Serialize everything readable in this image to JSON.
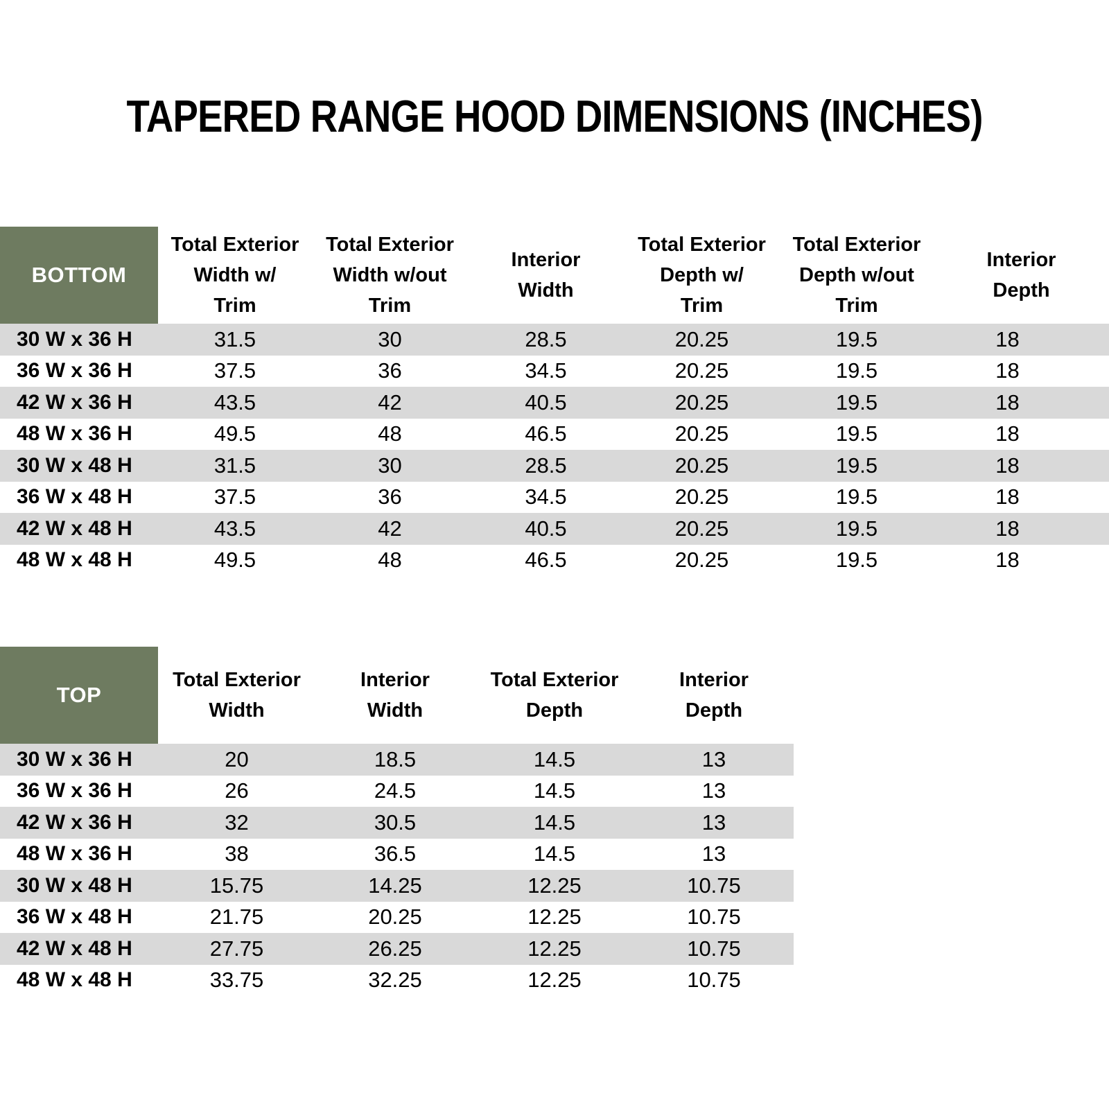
{
  "title": "TAPERED RANGE HOOD DIMENSIONS (INCHES)",
  "colors": {
    "header_green": "#6e7b60",
    "stripe_gray": "#d9d9d9",
    "corner_text": "#ffffff",
    "body_text": "#000000"
  },
  "bottom_table": {
    "corner_label": "BOTTOM",
    "column_headers": [
      {
        "lines": [
          "Total Exterior",
          "Width w/",
          "Trim"
        ]
      },
      {
        "lines": [
          "Total Exterior",
          "Width w/out",
          "Trim"
        ]
      },
      {
        "lines": [
          "Interior",
          "Width"
        ]
      },
      {
        "lines": [
          "Total Exterior",
          "Depth w/",
          "Trim"
        ]
      },
      {
        "lines": [
          "Total Exterior",
          "Depth w/out",
          "Trim"
        ]
      },
      {
        "lines": [
          "Interior",
          "Depth"
        ]
      }
    ],
    "rows": [
      {
        "size": "30 W x 36 H",
        "values": [
          "31.5",
          "30",
          "28.5",
          "20.25",
          "19.5",
          "18"
        ]
      },
      {
        "size": "36 W x 36 H",
        "values": [
          "37.5",
          "36",
          "34.5",
          "20.25",
          "19.5",
          "18"
        ]
      },
      {
        "size": "42 W x 36 H",
        "values": [
          "43.5",
          "42",
          "40.5",
          "20.25",
          "19.5",
          "18"
        ]
      },
      {
        "size": "48 W x 36 H",
        "values": [
          "49.5",
          "48",
          "46.5",
          "20.25",
          "19.5",
          "18"
        ]
      },
      {
        "size": "30 W x 48 H",
        "values": [
          "31.5",
          "30",
          "28.5",
          "20.25",
          "19.5",
          "18"
        ]
      },
      {
        "size": "36 W x 48 H",
        "values": [
          "37.5",
          "36",
          "34.5",
          "20.25",
          "19.5",
          "18"
        ]
      },
      {
        "size": "42 W x 48 H",
        "values": [
          "43.5",
          "42",
          "40.5",
          "20.25",
          "19.5",
          "18"
        ]
      },
      {
        "size": "48 W x 48 H",
        "values": [
          "49.5",
          "48",
          "46.5",
          "20.25",
          "19.5",
          "18"
        ]
      }
    ]
  },
  "top_table": {
    "corner_label": "TOP",
    "column_headers": [
      {
        "lines": [
          "Total Exterior",
          "Width"
        ]
      },
      {
        "lines": [
          "Interior",
          "Width"
        ]
      },
      {
        "lines": [
          "Total Exterior",
          "Depth"
        ]
      },
      {
        "lines": [
          "Interior",
          "Depth"
        ]
      }
    ],
    "rows": [
      {
        "size": "30 W x 36 H",
        "values": [
          "20",
          "18.5",
          "14.5",
          "13"
        ]
      },
      {
        "size": "36 W x 36 H",
        "values": [
          "26",
          "24.5",
          "14.5",
          "13"
        ]
      },
      {
        "size": "42 W x 36 H",
        "values": [
          "32",
          "30.5",
          "14.5",
          "13"
        ]
      },
      {
        "size": "48 W x 36 H",
        "values": [
          "38",
          "36.5",
          "14.5",
          "13"
        ]
      },
      {
        "size": "30 W x 48 H",
        "values": [
          "15.75",
          "14.25",
          "12.25",
          "10.75"
        ]
      },
      {
        "size": "36 W x 48 H",
        "values": [
          "21.75",
          "20.25",
          "12.25",
          "10.75"
        ]
      },
      {
        "size": "42 W x 48 H",
        "values": [
          "27.75",
          "26.25",
          "12.25",
          "10.75"
        ]
      },
      {
        "size": "48 W x 48 H",
        "values": [
          "33.75",
          "32.25",
          "12.25",
          "10.75"
        ]
      }
    ]
  }
}
